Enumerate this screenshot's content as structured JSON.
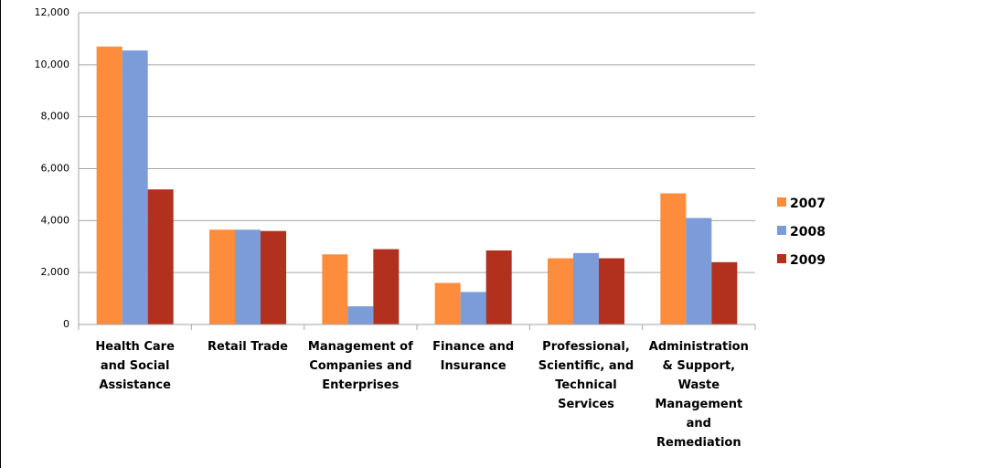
{
  "chart_data": {
    "type": "bar",
    "categories": [
      "Health Care and Social Assistance",
      "Retail Trade",
      "Management of Companies and Enterprises",
      "Finance and Insurance",
      "Professional, Scientific, and Technical Services",
      "Administration & Support, Waste Management and Remediation"
    ],
    "series": [
      {
        "name": "2007",
        "color": "#fd8c3c",
        "values": [
          10700,
          3650,
          2700,
          1600,
          2550,
          5050
        ]
      },
      {
        "name": "2008",
        "color": "#7b9bd9",
        "values": [
          10550,
          3650,
          700,
          1250,
          2750,
          4100
        ]
      },
      {
        "name": "2009",
        "color": "#b1301e",
        "values": [
          5200,
          3600,
          2900,
          2850,
          2550,
          2400
        ]
      }
    ],
    "ylim": [
      0,
      12000
    ],
    "yticks": [
      0,
      {
        "value": 2000,
        "label": "2,000"
      },
      {
        "value": 4000,
        "label": "4,000"
      },
      {
        "value": 6000,
        "label": "6,000"
      },
      {
        "value": 8000,
        "label": "8,000"
      },
      {
        "value": 10000,
        "label": "10,000"
      },
      {
        "value": 12000,
        "label": "12,000"
      }
    ],
    "grid": true,
    "legend": "right"
  }
}
